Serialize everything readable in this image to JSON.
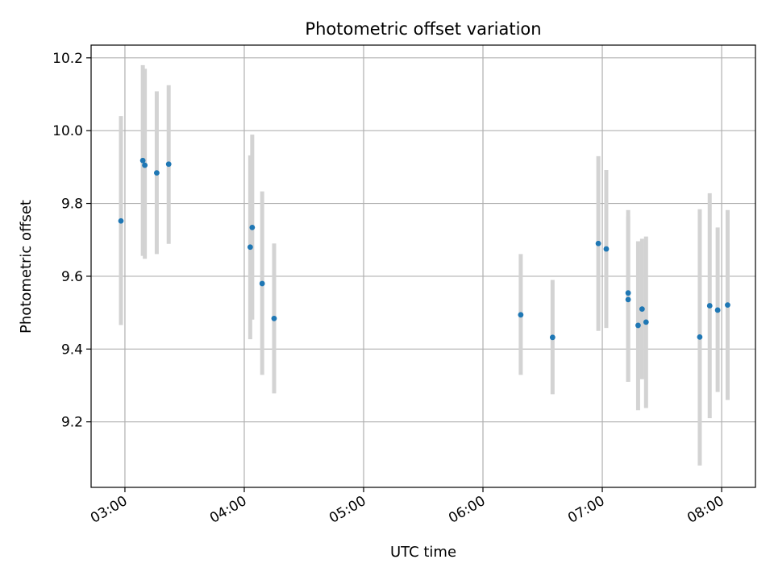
{
  "chart_data": {
    "type": "scatter",
    "title": "Photometric offset variation",
    "xlabel": "UTC time",
    "ylabel": "Photometric offset",
    "x_ticks": [
      "03:00",
      "04:00",
      "05:00",
      "06:00",
      "07:00",
      "08:00"
    ],
    "y_ticks": [
      "9.2",
      "9.4",
      "9.6",
      "9.8",
      "10.0",
      "10.2"
    ],
    "xlim": [
      "02:43",
      "08:17"
    ],
    "ylim": [
      9.02,
      10.235
    ],
    "grid": true,
    "legend": "none",
    "colors": {
      "point": "#1f77b4",
      "errorbar": "#d3d3d3",
      "grid": "#b0b0b0"
    },
    "points": [
      {
        "x": "02:58",
        "y": 9.752,
        "yerr_low": 9.466,
        "yerr_high": 10.04
      },
      {
        "x": "03:09",
        "y": 9.918,
        "yerr_low": 9.656,
        "yerr_high": 10.18
      },
      {
        "x": "03:10",
        "y": 9.905,
        "yerr_low": 9.648,
        "yerr_high": 10.17
      },
      {
        "x": "03:16",
        "y": 9.884,
        "yerr_low": 9.661,
        "yerr_high": 10.108
      },
      {
        "x": "03:22",
        "y": 9.908,
        "yerr_low": 9.689,
        "yerr_high": 10.125
      },
      {
        "x": "04:03",
        "y": 9.68,
        "yerr_low": 9.427,
        "yerr_high": 9.932
      },
      {
        "x": "04:04",
        "y": 9.734,
        "yerr_low": 9.481,
        "yerr_high": 9.989
      },
      {
        "x": "04:09",
        "y": 9.58,
        "yerr_low": 9.329,
        "yerr_high": 9.833
      },
      {
        "x": "04:15",
        "y": 9.484,
        "yerr_low": 9.278,
        "yerr_high": 9.69
      },
      {
        "x": "06:19",
        "y": 9.494,
        "yerr_low": 9.329,
        "yerr_high": 9.661
      },
      {
        "x": "06:35",
        "y": 9.432,
        "yerr_low": 9.276,
        "yerr_high": 9.59
      },
      {
        "x": "06:58",
        "y": 9.69,
        "yerr_low": 9.45,
        "yerr_high": 9.93
      },
      {
        "x": "07:02",
        "y": 9.675,
        "yerr_low": 9.458,
        "yerr_high": 9.892
      },
      {
        "x": "07:13",
        "y": 9.554,
        "yerr_low": 9.31,
        "yerr_high": 9.782
      },
      {
        "x": "07:13",
        "y": 9.536,
        "yerr_low": 9.31,
        "yerr_high": 9.764
      },
      {
        "x": "07:18",
        "y": 9.465,
        "yerr_low": 9.232,
        "yerr_high": 9.696
      },
      {
        "x": "07:20",
        "y": 9.51,
        "yerr_low": 9.317,
        "yerr_high": 9.703
      },
      {
        "x": "07:22",
        "y": 9.474,
        "yerr_low": 9.238,
        "yerr_high": 9.709
      },
      {
        "x": "07:49",
        "y": 9.433,
        "yerr_low": 9.08,
        "yerr_high": 9.784
      },
      {
        "x": "07:54",
        "y": 9.519,
        "yerr_low": 9.21,
        "yerr_high": 9.828
      },
      {
        "x": "07:58",
        "y": 9.507,
        "yerr_low": 9.282,
        "yerr_high": 9.734
      },
      {
        "x": "08:03",
        "y": 9.521,
        "yerr_low": 9.26,
        "yerr_high": 9.782
      }
    ]
  }
}
